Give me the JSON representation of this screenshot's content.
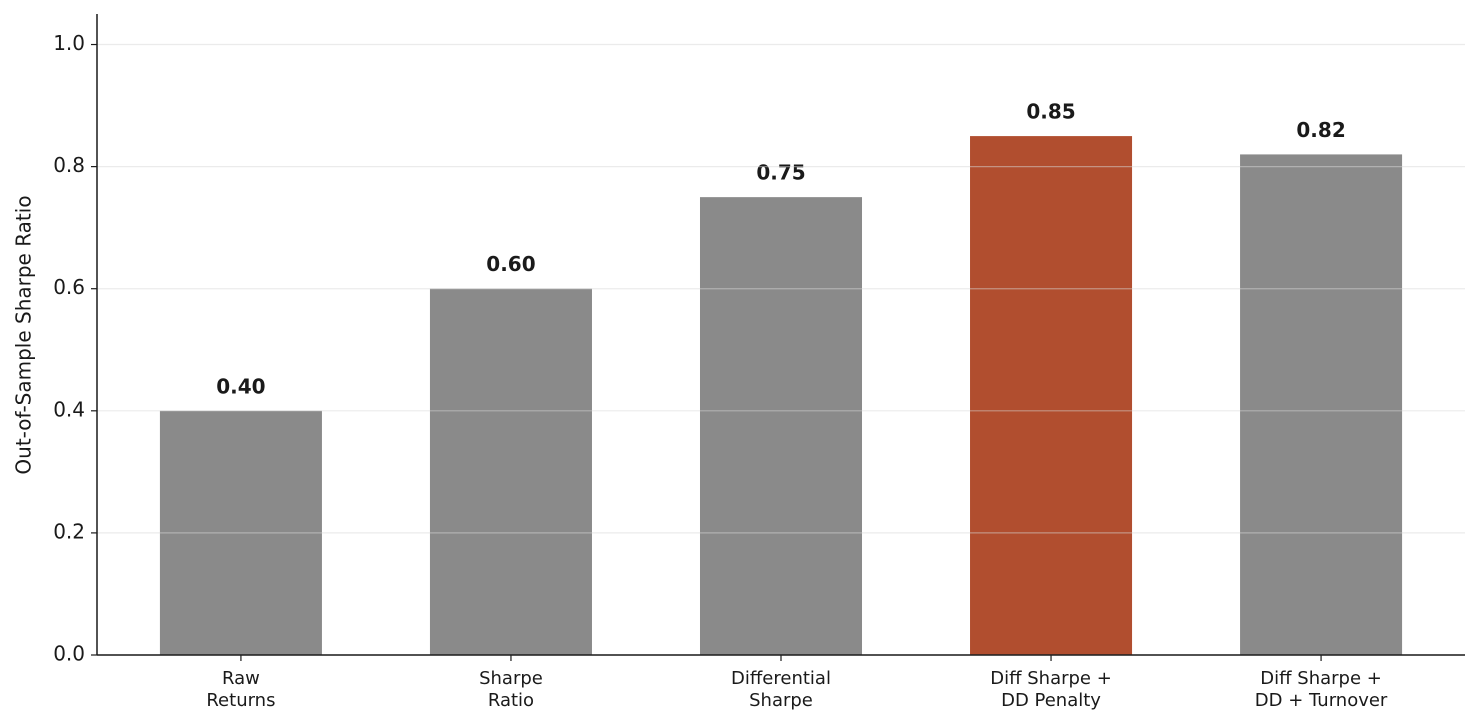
{
  "chart_data": {
    "type": "bar",
    "y_label": "Out-of-Sample Sharpe Ratio",
    "categories": [
      "Raw\nReturns",
      "Sharpe\nRatio",
      "Differential\nSharpe",
      "Diff Sharpe +\nDD Penalty",
      "Diff Sharpe +\nDD + Turnover"
    ],
    "values": [
      0.4,
      0.6,
      0.75,
      0.85,
      0.82
    ],
    "value_labels": [
      "0.40",
      "0.60",
      "0.75",
      "0.85",
      "0.82"
    ],
    "colors": [
      "#8a8a8a",
      "#8a8a8a",
      "#8a8a8a",
      "#b14e2f",
      "#8a8a8a"
    ],
    "ylim": [
      0,
      1.05
    ],
    "yticks": [
      0.0,
      0.2,
      0.4,
      0.6,
      0.8,
      1.0
    ],
    "ytick_labels": [
      "0.0",
      "0.2",
      "0.4",
      "0.6",
      "0.8",
      "1.0"
    ],
    "grid": true
  }
}
